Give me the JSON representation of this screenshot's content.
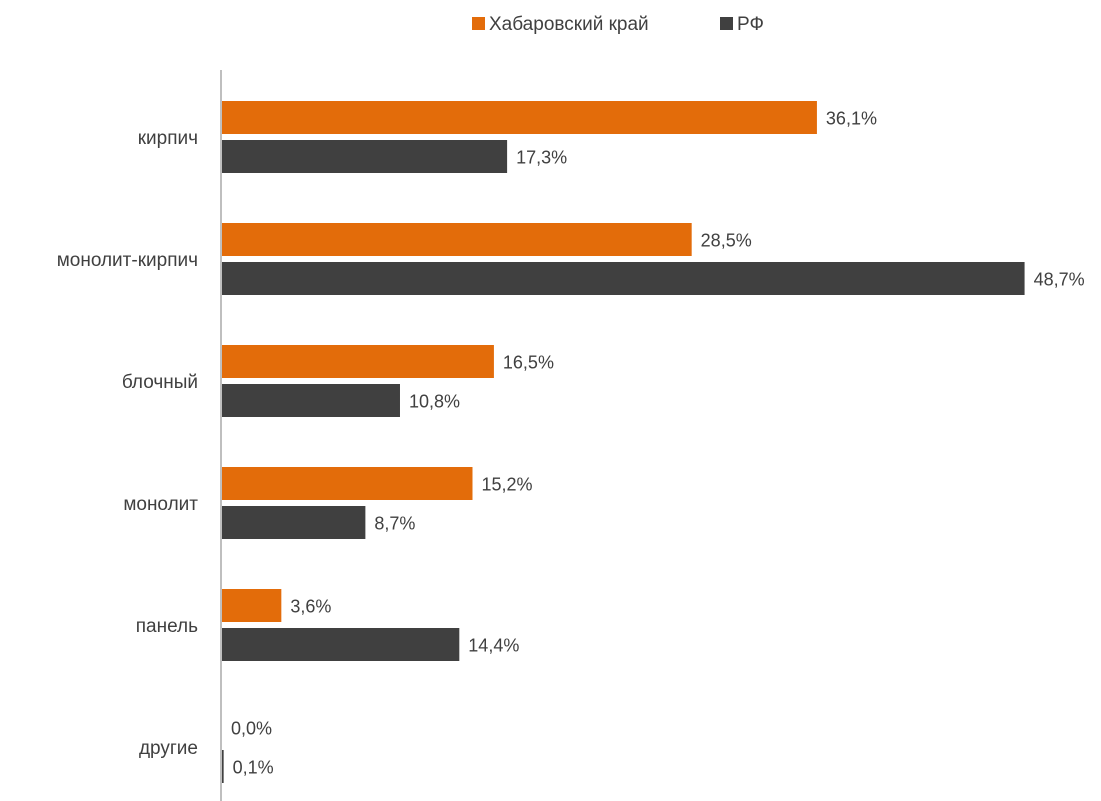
{
  "chart_data": {
    "type": "bar",
    "orientation": "horizontal",
    "categories": [
      "кирпич",
      "монолит-кирпич",
      "блочный",
      "монолит",
      "панель",
      "другие"
    ],
    "series": [
      {
        "name": "Хабаровский край",
        "color": "#E36C0A",
        "values": [
          36.1,
          28.5,
          16.5,
          15.2,
          3.6,
          0.0
        ],
        "labels": [
          "36,1%",
          "28,5%",
          "16,5%",
          "15,2%",
          "3,6%",
          "0,0%"
        ]
      },
      {
        "name": "РФ",
        "color": "#404040",
        "values": [
          17.3,
          48.7,
          10.8,
          8.7,
          14.4,
          0.1
        ],
        "labels": [
          "17,3%",
          "48,7%",
          "10,8%",
          "8,7%",
          "14,4%",
          "0,1%"
        ]
      }
    ],
    "legend_position": "top",
    "grid": false,
    "xlim": [
      0,
      50
    ]
  }
}
